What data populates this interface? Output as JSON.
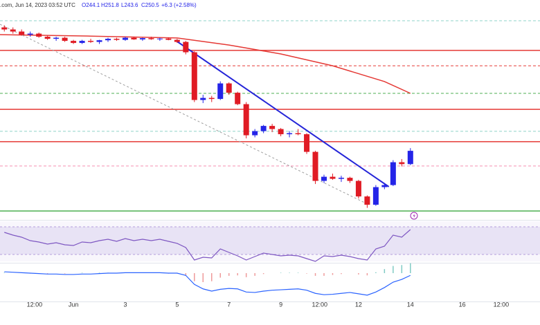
{
  "header": {
    "source": ".com, Jun 14, 2023 03:52 UTC",
    "ohlc": [
      "O244.1",
      "H251.8",
      "L243.6",
      "C250.5"
    ],
    "change": "+6.3 (+2.58%)"
  },
  "chart_data": [
    {
      "type": "candlestick",
      "x": [
        0,
        1,
        2,
        3,
        4,
        5,
        6,
        7,
        8,
        9,
        10,
        11,
        12,
        13,
        14,
        15,
        16,
        17,
        18,
        19,
        20,
        21,
        22,
        23,
        24,
        25,
        26,
        27,
        28,
        29,
        30,
        31,
        32,
        33,
        34,
        35,
        36,
        37,
        38,
        39,
        40,
        41,
        42,
        43,
        44,
        45,
        46,
        47
      ],
      "open": [
        310,
        309,
        308,
        306.5,
        307,
        305.5,
        304.5,
        305,
        303.5,
        302.5,
        303.5,
        303,
        303.8,
        304.5,
        304,
        305,
        304.2,
        304.8,
        304.3,
        304.6,
        304,
        303,
        298,
        275,
        276,
        275.5,
        283,
        278.5,
        273,
        258,
        260,
        262.5,
        261,
        258.5,
        259,
        258.5,
        250,
        236,
        238,
        237,
        237.5,
        236,
        228.5,
        224.5,
        233,
        234,
        245,
        244.1
      ],
      "high": [
        311,
        310,
        309,
        308,
        307.5,
        306,
        305.5,
        305.5,
        304,
        304,
        304.5,
        304,
        305,
        305,
        305.5,
        305.5,
        305,
        305.5,
        305,
        305.2,
        304.5,
        303.5,
        298.5,
        277.5,
        277,
        284,
        283.5,
        279,
        274,
        261,
        263,
        263.5,
        261.5,
        260,
        261,
        259,
        250.5,
        239,
        239.5,
        238.5,
        238,
        236.5,
        229,
        234,
        235,
        246,
        246.5,
        251.8
      ],
      "low": [
        308,
        307,
        306,
        305.5,
        305,
        304,
        303.5,
        303,
        302,
        302,
        302.5,
        302,
        303,
        303.5,
        303.5,
        304,
        303.5,
        304,
        303.5,
        303.8,
        302.5,
        297,
        274,
        273.5,
        274,
        275,
        277.5,
        272.5,
        256.5,
        257,
        259,
        259.5,
        257.5,
        257,
        258,
        249,
        234.5,
        235,
        236.5,
        235.5,
        235,
        227.5,
        223,
        224,
        232,
        233.5,
        243,
        243.6
      ],
      "close": [
        309,
        308,
        306.5,
        307,
        305.5,
        304.5,
        305,
        303.5,
        302.5,
        303.5,
        303,
        303.8,
        304.5,
        304,
        305,
        304.2,
        304.8,
        304.3,
        304.6,
        304,
        303,
        298,
        275,
        276,
        275.5,
        283,
        278.5,
        273,
        258,
        260,
        262.5,
        261,
        258.5,
        259,
        258.5,
        250,
        236,
        238,
        237,
        237.5,
        236,
        228.5,
        224.5,
        233,
        234,
        245,
        244.1,
        250.5
      ],
      "up_color": "#2424e8",
      "down_color": "#e01b24",
      "xlim": [
        -0.5,
        62
      ],
      "ylim": [
        217.2,
        323.2
      ],
      "xticks": [
        {
          "value": 3.5,
          "label": "12:00"
        },
        {
          "value": 8,
          "label": "Jun"
        },
        {
          "value": 14,
          "label": "3"
        },
        {
          "value": 20,
          "label": "5"
        },
        {
          "value": 26,
          "label": "7"
        },
        {
          "value": 32,
          "label": "9"
        },
        {
          "value": 36.5,
          "label": "12:00"
        },
        {
          "value": 41,
          "label": "12"
        },
        {
          "value": 47,
          "label": "14"
        },
        {
          "value": 53,
          "label": "16"
        },
        {
          "value": 57.5,
          "label": "12:00"
        }
      ],
      "hlines": [
        {
          "value": 313.2,
          "color": "#8fd3c8",
          "dashed": true
        },
        {
          "value": 298.9,
          "color": "#e53935",
          "dashed": false
        },
        {
          "value": 291.5,
          "color": "#e53935",
          "dashed": true
        },
        {
          "value": 278.2,
          "color": "#4caf50",
          "dashed": true
        },
        {
          "value": 270.5,
          "color": "#e53935",
          "dashed": false
        },
        {
          "value": 259.9,
          "color": "#8fd3c8",
          "dashed": true
        },
        {
          "value": 254.9,
          "color": "#e53935",
          "dashed": false
        },
        {
          "value": 243.2,
          "color": "#f48fb1",
          "dashed": true
        },
        {
          "value": 221.5,
          "color": "#4caf50",
          "dashed": false
        }
      ],
      "trendlines": [
        {
          "x": [
            20,
            44.5
          ],
          "values": [
            303.2,
            233.2
          ],
          "color": "#2525d8",
          "dashed": false
        },
        {
          "x": [
            -0.5,
            42
          ],
          "values": [
            311.5,
            224.9
          ],
          "color": "#9e9e9e",
          "dashed": true
        }
      ],
      "sma": {
        "color": "#e53935",
        "x": [
          -0.5,
          10,
          20,
          26,
          32,
          38,
          44,
          47
        ],
        "values": [
          306.5,
          305.8,
          304.9,
          301.5,
          297.2,
          291.5,
          283.9,
          278.2
        ]
      }
    },
    {
      "type": "rsi",
      "color": "#7e57c2",
      "ylim": [
        20,
        78
      ],
      "bands": [
        30,
        70
      ],
      "values": [
        62,
        58,
        55,
        50,
        48,
        45,
        47,
        44,
        43,
        48,
        47,
        50,
        52,
        49,
        53,
        50,
        52,
        50,
        52,
        49,
        46,
        40,
        22,
        26,
        25,
        38,
        33,
        28,
        22,
        27,
        32,
        30,
        28,
        29,
        28,
        24,
        20,
        28,
        27,
        29,
        27,
        24,
        22,
        38,
        42,
        58,
        55,
        66
      ]
    },
    {
      "type": "macd",
      "ylim": [
        -6,
        2
      ],
      "color": "#2962ff",
      "up_color": "#80cbc4",
      "down_color": "#ef9a9a",
      "values": [
        0.3,
        0.2,
        0.1,
        0,
        -0.1,
        -0.2,
        -0.2,
        -0.3,
        -0.3,
        -0.2,
        -0.2,
        -0.1,
        0,
        0,
        0.1,
        0.1,
        0.1,
        0.1,
        0.1,
        0,
        0,
        -0.5,
        -2.5,
        -3.5,
        -4,
        -3.6,
        -3.4,
        -3.5,
        -4.2,
        -4.3,
        -4,
        -3.8,
        -3.7,
        -3.6,
        -3.5,
        -3.8,
        -4.5,
        -4.8,
        -4.7,
        -4.5,
        -4.3,
        -4.6,
        -4.9,
        -4.2,
        -3.2,
        -2,
        -1.4,
        -0.5
      ],
      "histogram": [
        0.1,
        0,
        0,
        -0.1,
        -0.1,
        -0.1,
        0,
        -0.1,
        0,
        0.1,
        0,
        0.1,
        0.1,
        0,
        0.1,
        0,
        0,
        0,
        0,
        -0.1,
        -0.1,
        -0.5,
        -1.8,
        -2,
        -1.8,
        -1,
        -0.6,
        -0.5,
        -0.9,
        -0.6,
        -0.2,
        0,
        0.1,
        0.1,
        0.1,
        -0.1,
        -0.6,
        -0.6,
        -0.4,
        -0.2,
        0,
        -0.3,
        -0.5,
        0.2,
        0.9,
        1.6,
        1.8,
        2.2
      ]
    }
  ]
}
